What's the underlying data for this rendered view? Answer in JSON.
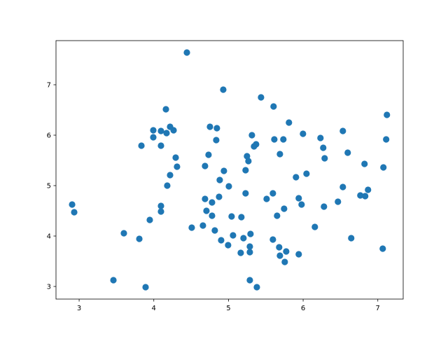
{
  "chart_data": {
    "type": "scatter",
    "title": "",
    "xlabel": "",
    "ylabel": "",
    "xlim": [
      2.69,
      7.34
    ],
    "ylim": [
      2.75,
      7.875
    ],
    "xticks": [
      "3",
      "4",
      "5",
      "6",
      "7"
    ],
    "yticks": [
      "3",
      "4",
      "5",
      "6",
      "7"
    ],
    "grid": false,
    "marker_color": "#1f77b4",
    "points": [
      [
        2.906,
        4.625
      ],
      [
        2.934,
        4.472
      ],
      [
        3.459,
        3.125
      ],
      [
        3.599,
        4.056
      ],
      [
        3.806,
        3.944
      ],
      [
        3.89,
        2.986
      ],
      [
        3.834,
        5.792
      ],
      [
        3.946,
        4.319
      ],
      [
        3.993,
        6.097
      ],
      [
        3.993,
        5.958
      ],
      [
        4.096,
        4.597
      ],
      [
        4.096,
        4.486
      ],
      [
        4.096,
        5.792
      ],
      [
        4.096,
        6.083
      ],
      [
        4.162,
        6.514
      ],
      [
        4.171,
        6.042
      ],
      [
        4.218,
        6.167
      ],
      [
        4.265,
        6.097
      ],
      [
        4.18,
        5.0
      ],
      [
        4.218,
        5.208
      ],
      [
        4.293,
        5.556
      ],
      [
        4.311,
        5.375
      ],
      [
        4.443,
        7.639
      ],
      [
        4.508,
        4.167
      ],
      [
        4.658,
        4.208
      ],
      [
        4.686,
        5.389
      ],
      [
        4.686,
        4.736
      ],
      [
        4.705,
        4.5
      ],
      [
        4.733,
        5.611
      ],
      [
        4.752,
        6.167
      ],
      [
        4.78,
        4.667
      ],
      [
        4.78,
        4.403
      ],
      [
        4.817,
        4.111
      ],
      [
        4.836,
        5.903
      ],
      [
        4.845,
        6.139
      ],
      [
        4.874,
        4.778
      ],
      [
        4.883,
        5.111
      ],
      [
        4.902,
        3.917
      ],
      [
        4.93,
        6.903
      ],
      [
        4.939,
        5.292
      ],
      [
        4.995,
        3.819
      ],
      [
        5.005,
        4.986
      ],
      [
        5.042,
        4.389
      ],
      [
        5.061,
        4.014
      ],
      [
        5.164,
        3.667
      ],
      [
        5.173,
        4.375
      ],
      [
        5.201,
        3.958
      ],
      [
        5.229,
        4.847
      ],
      [
        5.229,
        5.306
      ],
      [
        5.248,
        5.583
      ],
      [
        5.267,
        5.486
      ],
      [
        5.286,
        3.792
      ],
      [
        5.286,
        3.681
      ],
      [
        5.286,
        3.125
      ],
      [
        5.295,
        4.042
      ],
      [
        5.314,
        6.0
      ],
      [
        5.342,
        5.778
      ],
      [
        5.37,
        5.819
      ],
      [
        5.38,
        2.986
      ],
      [
        5.436,
        6.75
      ],
      [
        5.511,
        4.736
      ],
      [
        5.595,
        3.931
      ],
      [
        5.595,
        4.847
      ],
      [
        5.604,
        6.569
      ],
      [
        5.614,
        5.917
      ],
      [
        5.651,
        4.403
      ],
      [
        5.679,
        3.778
      ],
      [
        5.689,
        3.611
      ],
      [
        5.689,
        5.625
      ],
      [
        5.735,
        5.917
      ],
      [
        5.745,
        4.542
      ],
      [
        5.754,
        3.486
      ],
      [
        5.773,
        3.694
      ],
      [
        5.81,
        6.25
      ],
      [
        5.904,
        5.167
      ],
      [
        5.941,
        3.639
      ],
      [
        5.941,
        4.75
      ],
      [
        5.979,
        4.625
      ],
      [
        5.998,
        6.028
      ],
      [
        6.045,
        5.236
      ],
      [
        6.157,
        4.181
      ],
      [
        6.232,
        5.944
      ],
      [
        6.269,
        5.75
      ],
      [
        6.279,
        4.583
      ],
      [
        6.288,
        5.542
      ],
      [
        6.466,
        4.681
      ],
      [
        6.532,
        4.972
      ],
      [
        6.532,
        6.083
      ],
      [
        6.597,
        5.653
      ],
      [
        6.644,
        3.958
      ],
      [
        6.766,
        4.806
      ],
      [
        6.822,
        5.431
      ],
      [
        6.831,
        4.792
      ],
      [
        6.869,
        4.917
      ],
      [
        7.066,
        3.75
      ],
      [
        7.075,
        5.361
      ],
      [
        7.112,
        5.917
      ],
      [
        7.122,
        6.403
      ]
    ]
  }
}
